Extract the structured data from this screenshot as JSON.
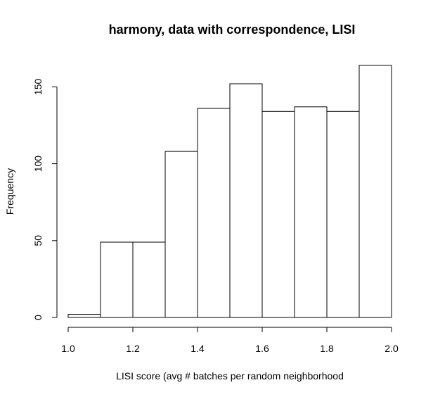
{
  "chart_data": {
    "type": "bar",
    "title": "harmony, data with correspondence, LISI",
    "xlabel": "LISI score (avg # batches per random neighborhood",
    "ylabel": "Frequency",
    "bins": [
      {
        "x0": 1.0,
        "x1": 1.1,
        "count": 2
      },
      {
        "x0": 1.1,
        "x1": 1.2,
        "count": 49
      },
      {
        "x0": 1.2,
        "x1": 1.3,
        "count": 49
      },
      {
        "x0": 1.3,
        "x1": 1.4,
        "count": 108
      },
      {
        "x0": 1.4,
        "x1": 1.5,
        "count": 136
      },
      {
        "x0": 1.5,
        "x1": 1.6,
        "count": 152
      },
      {
        "x0": 1.6,
        "x1": 1.7,
        "count": 134
      },
      {
        "x0": 1.7,
        "x1": 1.8,
        "count": 137
      },
      {
        "x0": 1.8,
        "x1": 1.9,
        "count": 134
      },
      {
        "x0": 1.9,
        "x1": 2.0,
        "count": 164
      }
    ],
    "xlim": [
      1.0,
      2.0
    ],
    "ylim": [
      0,
      164
    ],
    "x_ticks": [
      "1.0",
      "1.2",
      "1.4",
      "1.6",
      "1.8",
      "2.0"
    ],
    "y_ticks": [
      "0",
      "50",
      "100",
      "150"
    ],
    "grid": false,
    "bar_fill": "#ffffff",
    "bar_stroke": "#000000"
  }
}
